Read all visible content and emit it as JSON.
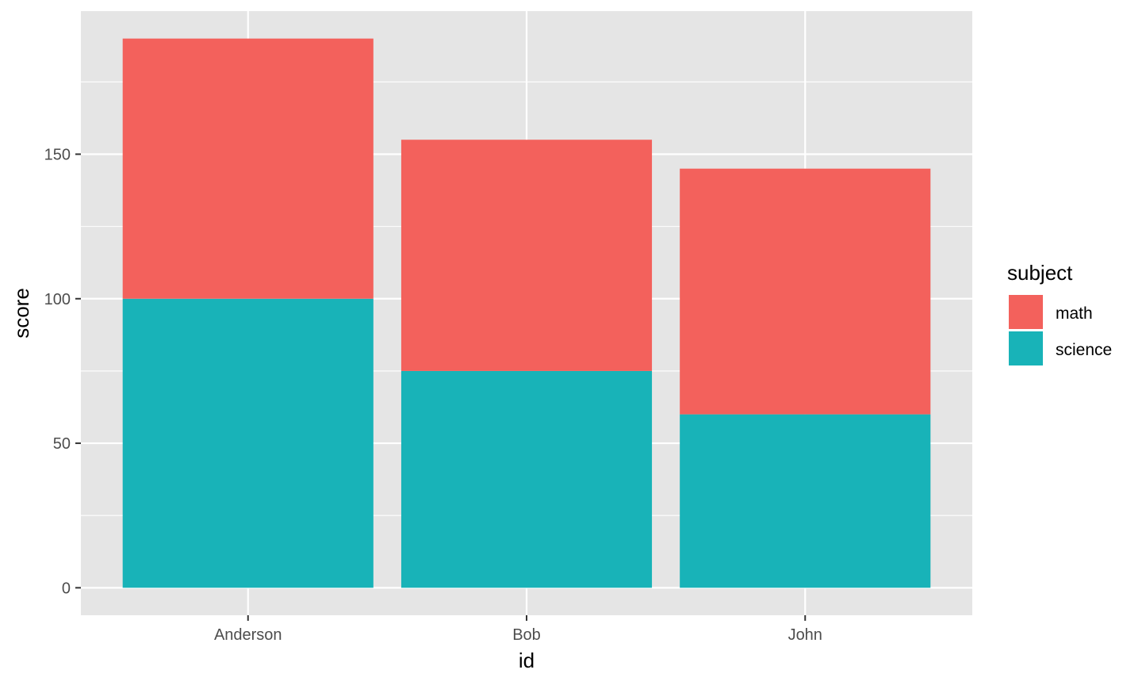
{
  "chart_data": {
    "type": "bar",
    "stacked": true,
    "xlabel": "id",
    "ylabel": "score",
    "categories": [
      "Anderson",
      "Bob",
      "John"
    ],
    "series": [
      {
        "name": "math",
        "color": "#F3615C",
        "values": [
          90,
          80,
          85
        ]
      },
      {
        "name": "science",
        "color": "#18B3B8",
        "values": [
          100,
          75,
          60
        ]
      }
    ],
    "ylim": [
      -9.5,
      199.5
    ],
    "yticks": [
      0,
      50,
      100,
      150
    ],
    "y_tick_labels": [
      "0",
      "50",
      "100",
      "150"
    ],
    "grid": true,
    "panel_background": "#E5E5E5",
    "legend": {
      "title": "subject",
      "position": "right",
      "items": [
        "math",
        "science"
      ]
    }
  }
}
